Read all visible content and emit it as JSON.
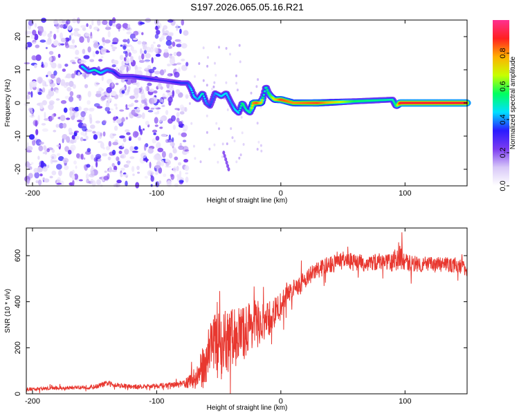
{
  "title": "S197.2026.065.05.16.R21",
  "chart_data": [
    {
      "type": "heatmap",
      "xlabel": "Height of straight line (km)",
      "ylabel": "Frequency (Hz)",
      "xlim": [
        -205,
        150
      ],
      "ylim": [
        -25,
        25
      ],
      "xticks": [
        -200,
        -100,
        0,
        100
      ],
      "yticks": [
        -20,
        -10,
        0,
        10,
        20
      ],
      "colorbar": {
        "label": "Normalized spectral amplitude",
        "range": [
          0,
          1
        ],
        "ticks": [
          0.0,
          0.2,
          0.4,
          0.6,
          0.8
        ],
        "colors": [
          "#ffffff",
          "#d8c8f8",
          "#7c3cf0",
          "#2a1aff",
          "#00e0ff",
          "#00ff60",
          "#c8ff00",
          "#ffb000",
          "#ff2020",
          "#ff3090"
        ]
      },
      "ridge": {
        "x": [
          -160,
          -155,
          -150,
          -145,
          -140,
          -135,
          -130,
          -120,
          -110,
          -100,
          -90,
          -80,
          -75,
          -72,
          -70,
          -67,
          -63,
          -60,
          -57,
          -53,
          -48,
          -44,
          -40,
          -37,
          -34,
          -31,
          -28,
          -25,
          -22,
          -19,
          -16,
          -14,
          -12,
          -10,
          -8,
          -5,
          0,
          10,
          30,
          60,
          90,
          93,
          96,
          100,
          150
        ],
        "y": [
          11,
          9.5,
          10,
          9,
          10,
          9.5,
          8,
          8,
          7.5,
          7,
          6.5,
          6,
          6,
          4,
          2,
          1,
          3,
          0,
          -1,
          3,
          2,
          3,
          0,
          -2,
          -3,
          0,
          -2,
          -3,
          0,
          0,
          0,
          2,
          5,
          3,
          2,
          1,
          1,
          0,
          0,
          0.5,
          1,
          -1,
          0,
          0,
          0
        ],
        "amplitude": [
          0.45,
          0.4,
          0.5,
          0.45,
          0.4,
          0.35,
          0.3,
          0.3,
          0.35,
          0.3,
          0.3,
          0.35,
          0.35,
          0.45,
          0.45,
          0.4,
          0.5,
          0.4,
          0.35,
          0.4,
          0.45,
          0.45,
          0.4,
          0.45,
          0.45,
          0.55,
          0.5,
          0.5,
          0.8,
          0.85,
          0.75,
          0.5,
          0.5,
          0.55,
          0.6,
          0.7,
          0.85,
          0.8,
          0.85,
          0.55,
          0.5,
          0.55,
          0.9,
          0.9,
          0.9
        ]
      },
      "scatter_noise_range_km": [
        -205,
        -75
      ]
    },
    {
      "type": "line",
      "xlabel": "Height of straight line (km)",
      "ylabel": "SNR (10 * v/v)",
      "xlim": [
        -205,
        150
      ],
      "ylim": [
        0,
        720
      ],
      "xticks": [
        -200,
        -100,
        0,
        100
      ],
      "yticks": [
        0,
        200,
        400,
        600
      ],
      "series": [
        {
          "name": "SNR",
          "color": "#e8372f",
          "x": [
            -205,
            -180,
            -150,
            -140,
            -120,
            -100,
            -80,
            -70,
            -65,
            -60,
            -55,
            -50,
            -45,
            -40,
            -35,
            -30,
            -25,
            -20,
            -15,
            -10,
            -5,
            0,
            5,
            10,
            20,
            30,
            40,
            50,
            60,
            70,
            80,
            90,
            95,
            100,
            110,
            120,
            130,
            140,
            150
          ],
          "y": [
            20,
            25,
            30,
            45,
            30,
            35,
            40,
            60,
            90,
            150,
            250,
            180,
            220,
            230,
            260,
            260,
            300,
            310,
            300,
            320,
            350,
            380,
            440,
            450,
            500,
            540,
            560,
            580,
            570,
            565,
            575,
            570,
            600,
            570,
            565,
            560,
            560,
            560,
            545
          ],
          "noise": [
            8,
            8,
            10,
            12,
            10,
            10,
            14,
            40,
            80,
            110,
            130,
            130,
            140,
            140,
            130,
            120,
            110,
            100,
            90,
            80,
            70,
            60,
            50,
            45,
            40,
            40,
            40,
            38,
            38,
            38,
            38,
            40,
            60,
            40,
            35,
            35,
            35,
            35,
            35
          ]
        }
      ]
    }
  ]
}
